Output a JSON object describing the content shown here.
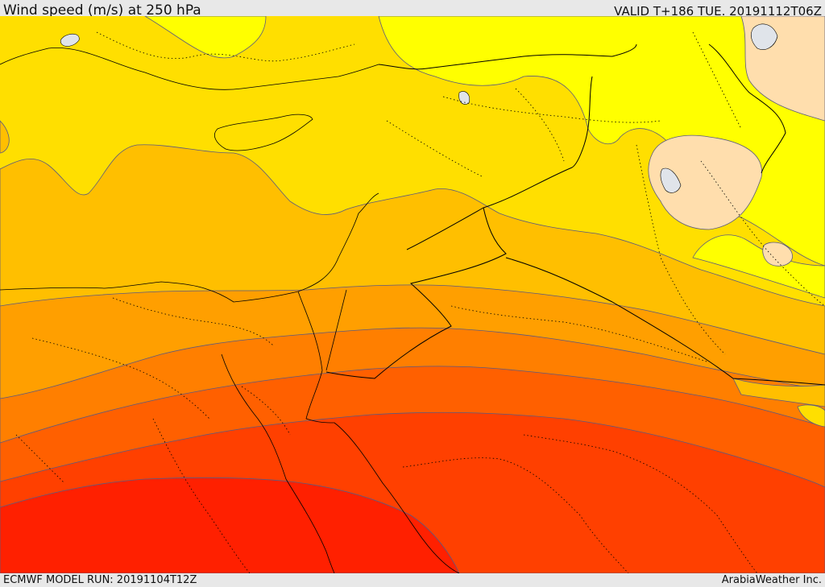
{
  "header": {
    "title": "Wind speed (m/s) at 250 hPa",
    "valid_time": "VALID T+186 TUE. 20191112T06Z"
  },
  "footer": {
    "model_run": "ECMWF MODEL RUN: 20191104T12Z",
    "credit": "ArabiaWeather Inc."
  },
  "palette": {
    "lightest": "#ffdead",
    "yellow": "#ffff00",
    "gold": "#ffdf00",
    "amber": "#ffbf00",
    "orange_light": "#ff9f00",
    "orange": "#ff7f00",
    "orange_dark": "#ff6000",
    "red_orange": "#ff4000",
    "red": "#ff2000",
    "contour": "#5a5a80",
    "land_line": "#000000",
    "water": "#e0e4ea"
  },
  "map": {
    "type": "filled-contour",
    "variable": "wind speed at 250 hPa"
  }
}
